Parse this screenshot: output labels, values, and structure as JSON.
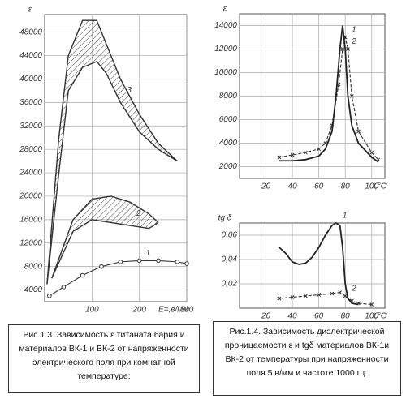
{
  "chart_data": [
    {
      "type": "line",
      "ylabel": "ε",
      "xlabel": "E=,в/мм",
      "xlim": [
        0,
        300
      ],
      "xticks": [
        100,
        200,
        300
      ],
      "ylim": [
        2000,
        51000
      ],
      "yticks": [
        4000,
        8000,
        12000,
        16000,
        20000,
        24000,
        28000,
        32000,
        36000,
        40000,
        44000,
        48000
      ],
      "grid": true,
      "series": [
        {
          "name": "1",
          "style": "dots",
          "color": "#333",
          "x": [
            10,
            40,
            80,
            120,
            160,
            200,
            240,
            280,
            300
          ],
          "values": [
            3000,
            4500,
            6500,
            8000,
            8800,
            9000,
            9000,
            8800,
            8500
          ]
        },
        {
          "name": "2",
          "style": "band",
          "color": "#333",
          "x": [
            15,
            60,
            100,
            140,
            180,
            220,
            240
          ],
          "upper": [
            6000,
            16000,
            19500,
            20000,
            19000,
            17000,
            15500
          ],
          "lower": [
            6000,
            14000,
            16000,
            15500,
            15000,
            14500,
            15500
          ]
        },
        {
          "name": "3",
          "style": "band",
          "color": "#333",
          "x": [
            5,
            30,
            50,
            80,
            110,
            130,
            160,
            200,
            240,
            280
          ],
          "upper": [
            5000,
            30000,
            44000,
            50000,
            50000,
            46000,
            40000,
            34000,
            29000,
            26000
          ],
          "lower": [
            5000,
            24000,
            38000,
            42000,
            43000,
            41000,
            36000,
            31000,
            28000,
            26000
          ]
        }
      ]
    },
    {
      "type": "line",
      "ylabel": "ε",
      "xlabel": "t,°C",
      "xlim": [
        0,
        110
      ],
      "xticks": [
        20,
        40,
        60,
        80,
        100
      ],
      "ylim": [
        1000,
        15000
      ],
      "yticks": [
        2000,
        4000,
        6000,
        8000,
        10000,
        12000,
        14000
      ],
      "grid": true,
      "series": [
        {
          "name": "1",
          "style": "x-dashed",
          "color": "#333",
          "x": [
            30,
            40,
            50,
            60,
            65,
            70,
            75,
            78,
            80,
            82,
            85,
            90,
            100,
            105
          ],
          "values": [
            2800,
            3000,
            3200,
            3500,
            4000,
            5500,
            9000,
            12000,
            13000,
            12000,
            8000,
            5000,
            3200,
            2600
          ]
        },
        {
          "name": "2",
          "style": "solid",
          "color": "#222",
          "x": [
            30,
            40,
            50,
            60,
            65,
            70,
            73,
            76,
            78,
            80,
            82,
            85,
            90,
            100,
            105
          ],
          "values": [
            2500,
            2500,
            2600,
            2900,
            3500,
            5000,
            8000,
            12000,
            14000,
            12000,
            8000,
            5500,
            4000,
            2800,
            2400
          ]
        }
      ]
    },
    {
      "type": "line",
      "ylabel": "tg δ",
      "xlabel": "t,°C",
      "xlim": [
        0,
        110
      ],
      "xticks": [
        20,
        40,
        60,
        80,
        100
      ],
      "ylim": [
        0,
        0.07
      ],
      "yticks": [
        {
          "value": 0.02,
          "label": "0,02"
        },
        {
          "value": 0.04,
          "label": "0,04"
        },
        {
          "value": 0.06,
          "label": "0,06"
        }
      ],
      "grid": true,
      "series": [
        {
          "name": "1",
          "style": "solid",
          "color": "#222",
          "x": [
            30,
            35,
            40,
            45,
            50,
            55,
            60,
            65,
            70,
            73,
            76,
            78,
            80,
            82,
            85,
            90
          ],
          "values": [
            0.05,
            0.045,
            0.038,
            0.036,
            0.037,
            0.042,
            0.05,
            0.06,
            0.068,
            0.07,
            0.068,
            0.05,
            0.02,
            0.008,
            0.004,
            0.003
          ]
        },
        {
          "name": "2",
          "style": "x-dashed",
          "color": "#333",
          "x": [
            30,
            40,
            50,
            60,
            70,
            76,
            80,
            85,
            90,
            100
          ],
          "values": [
            0.008,
            0.009,
            0.01,
            0.011,
            0.012,
            0.013,
            0.01,
            0.006,
            0.004,
            0.003
          ]
        }
      ]
    }
  ],
  "captions": [
    "Рис.1.3. Зависимость ε титаната бария и материалов ВК-1 и ВК-2 от напряженности электрического поля при комнатной температуре:",
    "Рис.1.4. Зависимость диэлектрической проницаемости ε и tgδ материалов ВК-1и ВК-2 от температуры при напряженности поля 5 в/мм и частоте 1000 гц:"
  ]
}
